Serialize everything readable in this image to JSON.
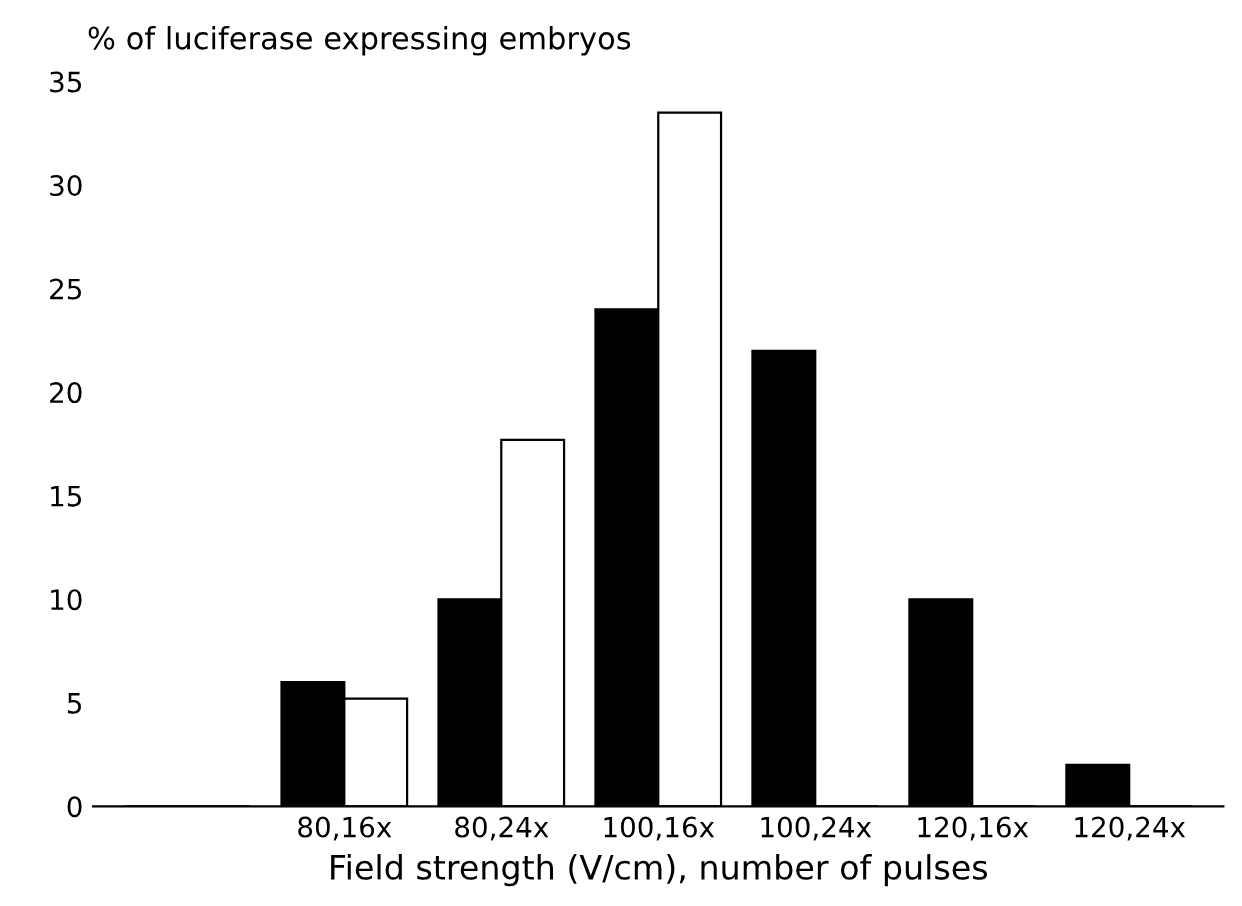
{
  "chart_data": {
    "type": "bar",
    "ylabel": "% of luciferase expressing embryos",
    "xlabel": "Field strength (V/cm), number of pulses",
    "categories": [
      null,
      "80,16x",
      "80,24x",
      "100,16x",
      "100,24x",
      "120,16x",
      "120,24x"
    ],
    "series": [
      {
        "color": "#000000",
        "values": [
          0,
          6,
          10,
          24,
          22,
          10,
          2
        ]
      },
      {
        "color": "#ffffff",
        "values": [
          0,
          5.2,
          17.7,
          33.5,
          0,
          0,
          0
        ]
      }
    ],
    "ylim": [
      0,
      35
    ],
    "yticks": [
      0,
      5,
      10,
      15,
      20,
      25,
      30,
      35
    ],
    "grid": false,
    "legend": false
  }
}
